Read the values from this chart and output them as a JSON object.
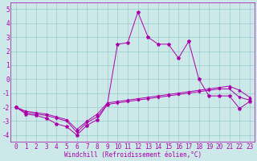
{
  "xlabel": "Windchill (Refroidissement éolien,°C)",
  "xlim": [
    -0.5,
    23.5
  ],
  "ylim": [
    -4.5,
    5.5
  ],
  "yticks": [
    -4,
    -3,
    -2,
    -1,
    0,
    1,
    2,
    3,
    4,
    5
  ],
  "xticks": [
    0,
    1,
    2,
    3,
    4,
    5,
    6,
    7,
    8,
    9,
    10,
    11,
    12,
    13,
    14,
    15,
    16,
    17,
    18,
    19,
    20,
    21,
    22,
    23
  ],
  "bg_color": "#cce8e8",
  "line_color": "#aa00aa",
  "grid_color": "#99cccc",
  "line1_x": [
    0,
    1,
    2,
    3,
    4,
    5,
    6,
    7,
    8,
    9,
    10,
    11,
    12,
    13,
    14,
    15,
    16,
    17,
    18,
    19,
    20,
    21,
    22,
    23
  ],
  "line1_y": [
    -2.0,
    -2.5,
    -2.6,
    -2.8,
    -3.2,
    -3.4,
    -4.0,
    -3.3,
    -2.9,
    -1.8,
    2.5,
    2.6,
    4.8,
    3.0,
    2.5,
    2.5,
    1.5,
    2.7,
    0.0,
    -1.2,
    -1.2,
    -1.2,
    -2.1,
    -1.6
  ],
  "line2_x": [
    0,
    1,
    2,
    3,
    4,
    5,
    6,
    7,
    8,
    9,
    10,
    11,
    12,
    13,
    14,
    15,
    16,
    17,
    18,
    19,
    20,
    21,
    22,
    23
  ],
  "line2_y": [
    -2.0,
    -2.4,
    -2.5,
    -2.6,
    -2.8,
    -3.0,
    -3.8,
    -3.1,
    -2.7,
    -1.8,
    -1.7,
    -1.6,
    -1.5,
    -1.4,
    -1.3,
    -1.2,
    -1.1,
    -1.0,
    -0.9,
    -0.8,
    -0.7,
    -0.7,
    -1.3,
    -1.5
  ],
  "line3_x": [
    0,
    1,
    2,
    3,
    4,
    5,
    6,
    7,
    8,
    9,
    10,
    11,
    12,
    13,
    14,
    15,
    16,
    17,
    18,
    19,
    20,
    21,
    22,
    23
  ],
  "line3_y": [
    -2.0,
    -2.3,
    -2.4,
    -2.5,
    -2.7,
    -2.9,
    -3.6,
    -3.0,
    -2.5,
    -1.7,
    -1.6,
    -1.5,
    -1.4,
    -1.3,
    -1.2,
    -1.1,
    -1.0,
    -0.9,
    -0.8,
    -0.7,
    -0.6,
    -0.5,
    -0.8,
    -1.3
  ],
  "tick_fontsize": 5.5,
  "xlabel_fontsize": 5.5,
  "linewidth": 0.7,
  "markersize": 2.0
}
